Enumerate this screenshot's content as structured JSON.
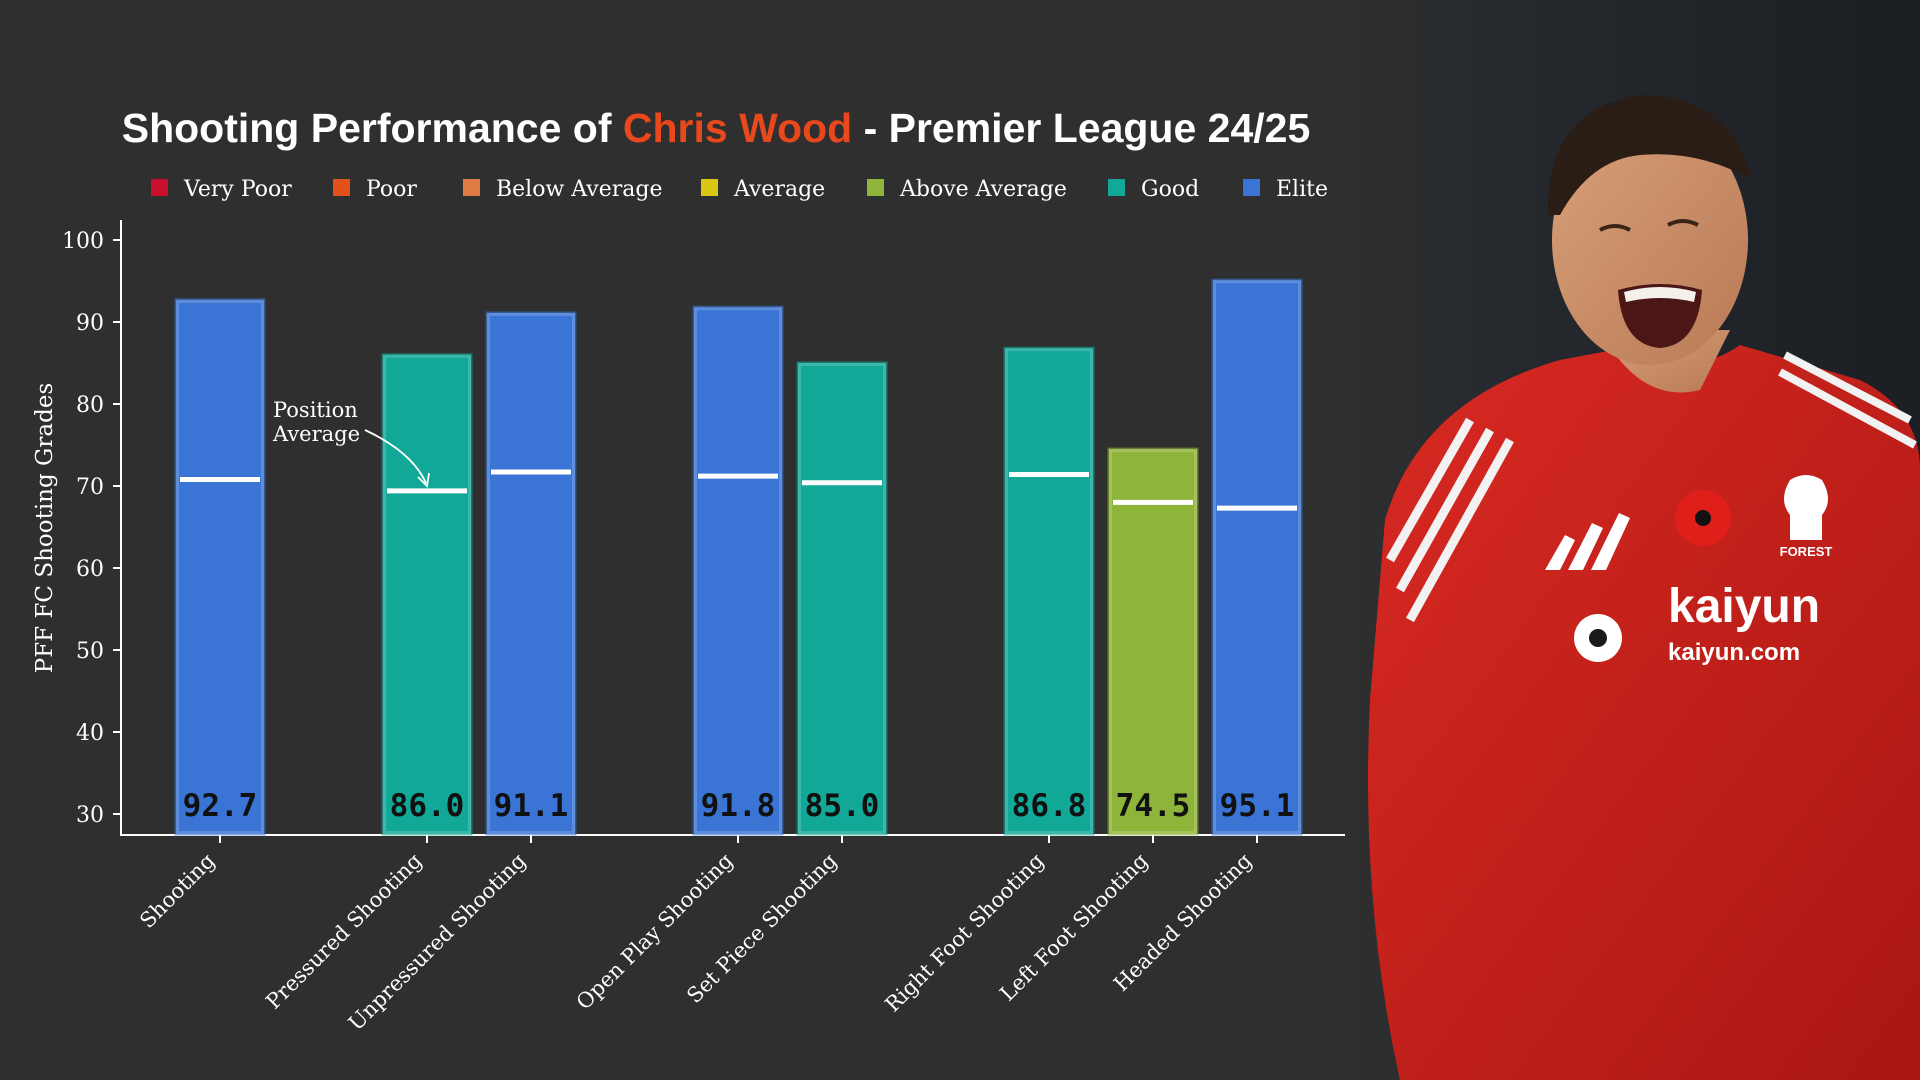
{
  "title": {
    "prefix": "Shooting Performance of ",
    "highlight": "Chris Wood",
    "suffix": " - Premier League 24/25",
    "highlight_color": "#e8481c",
    "text_color": "#ffffff"
  },
  "legend": [
    {
      "label": "Very Poor",
      "color": "#c8102e"
    },
    {
      "label": "Poor",
      "color": "#e0521a"
    },
    {
      "label": "Below Average",
      "color": "#e07b45"
    },
    {
      "label": "Average",
      "color": "#d8c814"
    },
    {
      "label": "Above Average",
      "color": "#8fb43a"
    },
    {
      "label": "Good",
      "color": "#12a898"
    },
    {
      "label": "Elite",
      "color": "#3a74d4"
    }
  ],
  "annotation": {
    "line1": "Position",
    "line2": "Average"
  },
  "chart_data": {
    "type": "bar",
    "ylabel": "PFF FC Shooting Grades",
    "ylim": [
      30,
      100
    ],
    "yticks": [
      30,
      40,
      50,
      60,
      70,
      80,
      90,
      100
    ],
    "categories": [
      "Shooting",
      "Pressured Shooting",
      "Unpressured Shooting",
      "Open Play Shooting",
      "Set Piece Shooting",
      "Right Foot Shooting",
      "Left Foot Shooting",
      "Headed Shooting"
    ],
    "values": [
      92.7,
      86.0,
      91.1,
      91.8,
      85.0,
      86.8,
      74.5,
      95.1
    ],
    "value_labels": [
      "92.7",
      "86.0",
      "91.1",
      "91.8",
      "85.0",
      "86.8",
      "74.5",
      "95.1"
    ],
    "position_average": [
      70.8,
      69.4,
      71.7,
      71.2,
      70.4,
      71.4,
      68.0,
      67.3
    ],
    "grade": [
      "Elite",
      "Good",
      "Elite",
      "Elite",
      "Good",
      "Good",
      "Above Average",
      "Elite"
    ],
    "grid": false,
    "legend_position": "top"
  },
  "photo": {
    "shirt_text": "kaiyun",
    "shirt_subtext": "kaiyun.com",
    "crest_text": "FOREST"
  }
}
